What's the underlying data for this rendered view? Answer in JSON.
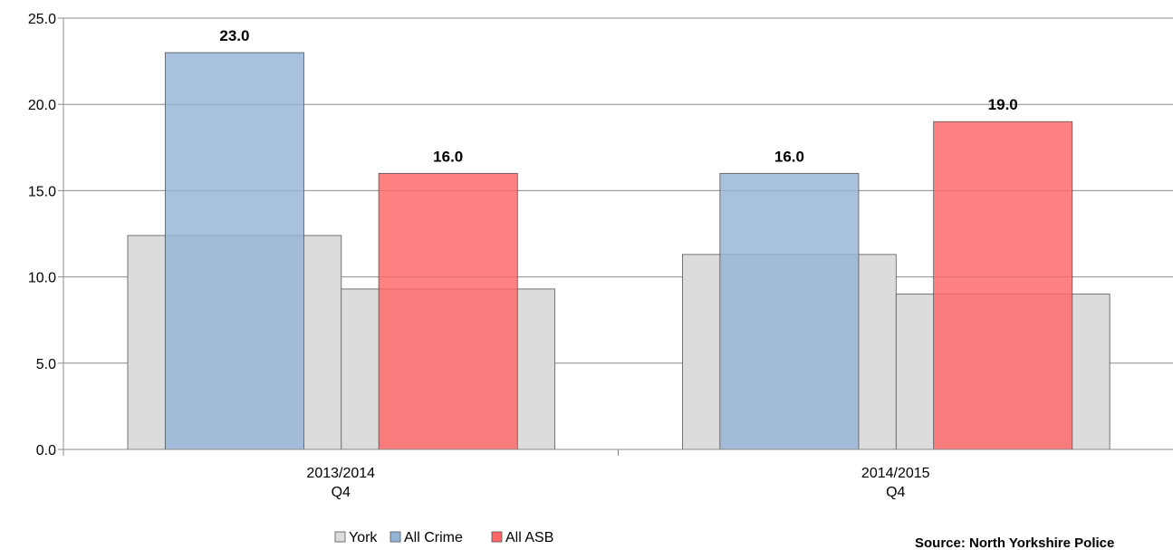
{
  "chart_data": {
    "type": "bar",
    "categories": [
      [
        "2013/2014",
        "Q4"
      ],
      [
        "2014/2015",
        "Q4"
      ]
    ],
    "ylim": [
      0,
      25
    ],
    "yticks": [
      "0.0",
      "5.0",
      "10.0",
      "15.0",
      "20.0",
      "25.0"
    ],
    "grid": true,
    "legend": "bottom",
    "background_series": {
      "name": "York",
      "color": "#dcdcdc",
      "pairs": [
        [
          12.4,
          9.3
        ],
        [
          11.3,
          9.0
        ]
      ]
    },
    "series": [
      {
        "name": "All Crime",
        "values": [
          23.0,
          16.0
        ],
        "labels": [
          "23.0",
          "16.0"
        ],
        "color": "#95b3d7"
      },
      {
        "name": "All ASB",
        "values": [
          16.0,
          19.0
        ],
        "labels": [
          "16.0",
          "19.0"
        ],
        "color": "#ff6666"
      }
    ],
    "source_note": "Source: North Yorkshire Police"
  }
}
